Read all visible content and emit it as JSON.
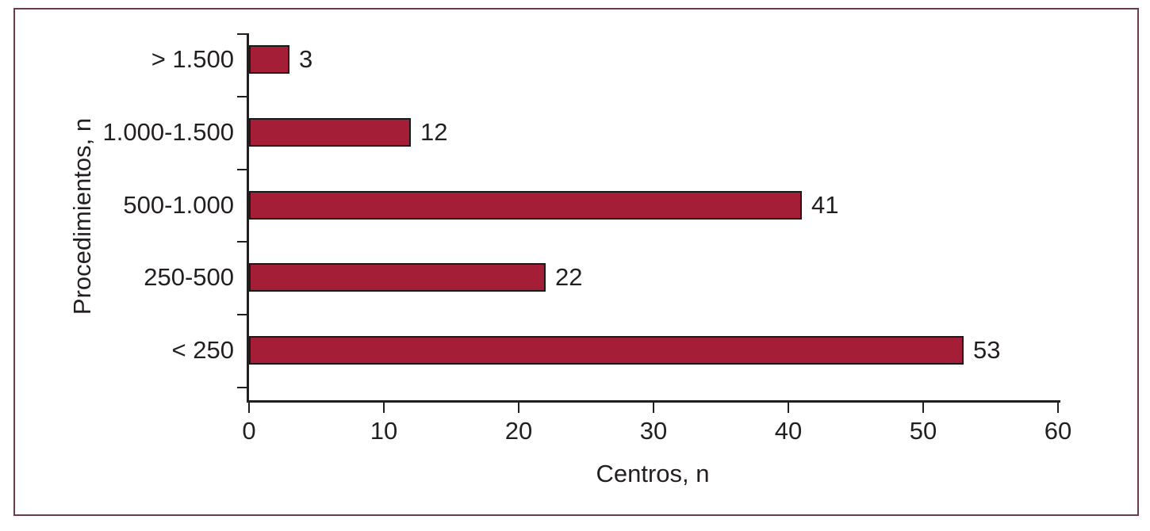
{
  "chart_data": {
    "type": "bar",
    "orientation": "horizontal",
    "title": "",
    "categories": [
      "> 1.500",
      "1.000-1.500",
      "500-1.000",
      "250-500",
      "< 250"
    ],
    "values": [
      3,
      12,
      41,
      22,
      53
    ],
    "value_labels": [
      "3",
      "12",
      "41",
      "22",
      "53"
    ],
    "xlabel": "Centros, n",
    "ylabel": "Procedimientos, n",
    "xlim": [
      0,
      60
    ],
    "xticks": [
      0,
      10,
      20,
      30,
      40,
      50,
      60
    ],
    "grid": false,
    "legend": false,
    "bar_color": "#a51e38",
    "bar_border_color": "#1a1a1a",
    "axis_color": "#231f20",
    "frame_border_color": "#6e3a50",
    "background_color": "#ffffff"
  }
}
